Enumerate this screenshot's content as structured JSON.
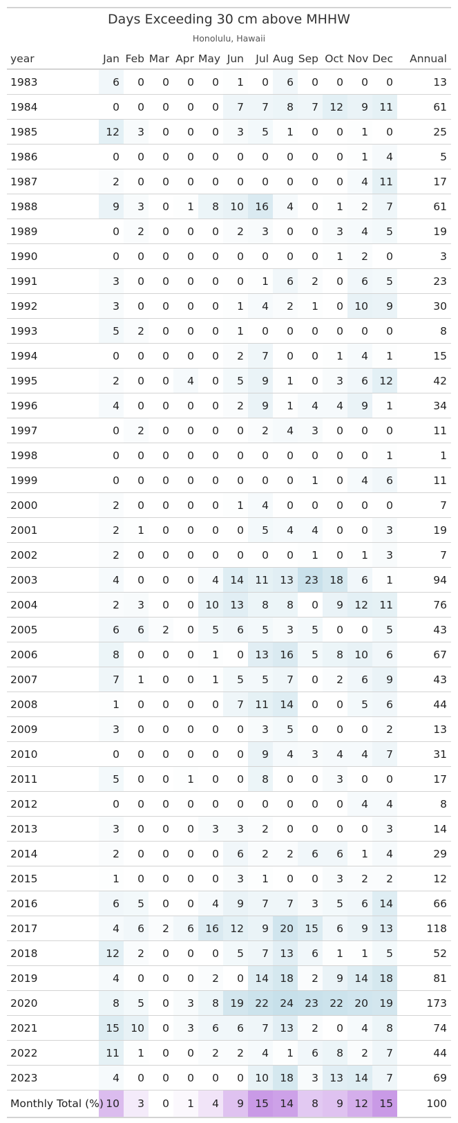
{
  "header": {
    "title": "Days Exceeding 30 cm above MHHW",
    "subtitle": "Honolulu, Hawaii"
  },
  "colors": {
    "low_fill": "#ffffff",
    "high_fill": "#c7e0ea",
    "total_low_fill": "#ffffff",
    "total_high_fill": "#c99ae6"
  },
  "chart_data": {
    "type": "table",
    "columns": [
      "year",
      "Jan",
      "Feb",
      "Mar",
      "Apr",
      "May",
      "Jun",
      "Jul",
      "Aug",
      "Sep",
      "Oct",
      "Nov",
      "Dec",
      "Annual"
    ],
    "rows": [
      {
        "year": "1983",
        "values": [
          6,
          0,
          0,
          0,
          0,
          1,
          0,
          6,
          0,
          0,
          0,
          0
        ],
        "annual": 13
      },
      {
        "year": "1984",
        "values": [
          0,
          0,
          0,
          0,
          0,
          7,
          7,
          8,
          7,
          12,
          9,
          11
        ],
        "annual": 61
      },
      {
        "year": "1985",
        "values": [
          12,
          3,
          0,
          0,
          0,
          3,
          5,
          1,
          0,
          0,
          1,
          0
        ],
        "annual": 25
      },
      {
        "year": "1986",
        "values": [
          0,
          0,
          0,
          0,
          0,
          0,
          0,
          0,
          0,
          0,
          1,
          4
        ],
        "annual": 5
      },
      {
        "year": "1987",
        "values": [
          2,
          0,
          0,
          0,
          0,
          0,
          0,
          0,
          0,
          0,
          4,
          11
        ],
        "annual": 17
      },
      {
        "year": "1988",
        "values": [
          9,
          3,
          0,
          1,
          8,
          10,
          16,
          4,
          0,
          1,
          2,
          7
        ],
        "annual": 61
      },
      {
        "year": "1989",
        "values": [
          0,
          2,
          0,
          0,
          0,
          2,
          3,
          0,
          0,
          3,
          4,
          5
        ],
        "annual": 19
      },
      {
        "year": "1990",
        "values": [
          0,
          0,
          0,
          0,
          0,
          0,
          0,
          0,
          0,
          1,
          2,
          0
        ],
        "annual": 3
      },
      {
        "year": "1991",
        "values": [
          3,
          0,
          0,
          0,
          0,
          0,
          1,
          6,
          2,
          0,
          6,
          5
        ],
        "annual": 23
      },
      {
        "year": "1992",
        "values": [
          3,
          0,
          0,
          0,
          0,
          1,
          4,
          2,
          1,
          0,
          10,
          9
        ],
        "annual": 30
      },
      {
        "year": "1993",
        "values": [
          5,
          2,
          0,
          0,
          0,
          1,
          0,
          0,
          0,
          0,
          0,
          0
        ],
        "annual": 8
      },
      {
        "year": "1994",
        "values": [
          0,
          0,
          0,
          0,
          0,
          2,
          7,
          0,
          0,
          1,
          4,
          1
        ],
        "annual": 15
      },
      {
        "year": "1995",
        "values": [
          2,
          0,
          0,
          4,
          0,
          5,
          9,
          1,
          0,
          3,
          6,
          12
        ],
        "annual": 42
      },
      {
        "year": "1996",
        "values": [
          4,
          0,
          0,
          0,
          0,
          2,
          9,
          1,
          4,
          4,
          9,
          1
        ],
        "annual": 34
      },
      {
        "year": "1997",
        "values": [
          0,
          2,
          0,
          0,
          0,
          0,
          2,
          4,
          3,
          0,
          0,
          0
        ],
        "annual": 11
      },
      {
        "year": "1998",
        "values": [
          0,
          0,
          0,
          0,
          0,
          0,
          0,
          0,
          0,
          0,
          0,
          1
        ],
        "annual": 1
      },
      {
        "year": "1999",
        "values": [
          0,
          0,
          0,
          0,
          0,
          0,
          0,
          0,
          1,
          0,
          4,
          6
        ],
        "annual": 11
      },
      {
        "year": "2000",
        "values": [
          2,
          0,
          0,
          0,
          0,
          1,
          4,
          0,
          0,
          0,
          0,
          0
        ],
        "annual": 7
      },
      {
        "year": "2001",
        "values": [
          2,
          1,
          0,
          0,
          0,
          0,
          5,
          4,
          4,
          0,
          0,
          3
        ],
        "annual": 19
      },
      {
        "year": "2002",
        "values": [
          2,
          0,
          0,
          0,
          0,
          0,
          0,
          0,
          1,
          0,
          1,
          3
        ],
        "annual": 7
      },
      {
        "year": "2003",
        "values": [
          4,
          0,
          0,
          0,
          4,
          14,
          11,
          13,
          23,
          18,
          6,
          1
        ],
        "annual": 94
      },
      {
        "year": "2004",
        "values": [
          2,
          3,
          0,
          0,
          10,
          13,
          8,
          8,
          0,
          9,
          12,
          11
        ],
        "annual": 76
      },
      {
        "year": "2005",
        "values": [
          6,
          6,
          2,
          0,
          5,
          6,
          5,
          3,
          5,
          0,
          0,
          5
        ],
        "annual": 43
      },
      {
        "year": "2006",
        "values": [
          8,
          0,
          0,
          0,
          1,
          0,
          13,
          16,
          5,
          8,
          10,
          6
        ],
        "annual": 67
      },
      {
        "year": "2007",
        "values": [
          7,
          1,
          0,
          0,
          1,
          5,
          5,
          7,
          0,
          2,
          6,
          9
        ],
        "annual": 43
      },
      {
        "year": "2008",
        "values": [
          1,
          0,
          0,
          0,
          0,
          7,
          11,
          14,
          0,
          0,
          5,
          6
        ],
        "annual": 44
      },
      {
        "year": "2009",
        "values": [
          3,
          0,
          0,
          0,
          0,
          0,
          3,
          5,
          0,
          0,
          0,
          2
        ],
        "annual": 13
      },
      {
        "year": "2010",
        "values": [
          0,
          0,
          0,
          0,
          0,
          0,
          9,
          4,
          3,
          4,
          4,
          7
        ],
        "annual": 31
      },
      {
        "year": "2011",
        "values": [
          5,
          0,
          0,
          1,
          0,
          0,
          8,
          0,
          0,
          3,
          0,
          0
        ],
        "annual": 17
      },
      {
        "year": "2012",
        "values": [
          0,
          0,
          0,
          0,
          0,
          0,
          0,
          0,
          0,
          0,
          4,
          4
        ],
        "annual": 8
      },
      {
        "year": "2013",
        "values": [
          3,
          0,
          0,
          0,
          3,
          3,
          2,
          0,
          0,
          0,
          0,
          3
        ],
        "annual": 14
      },
      {
        "year": "2014",
        "values": [
          2,
          0,
          0,
          0,
          0,
          6,
          2,
          2,
          6,
          6,
          1,
          4
        ],
        "annual": 29
      },
      {
        "year": "2015",
        "values": [
          1,
          0,
          0,
          0,
          0,
          3,
          1,
          0,
          0,
          3,
          2,
          2
        ],
        "annual": 12
      },
      {
        "year": "2016",
        "values": [
          6,
          5,
          0,
          0,
          4,
          9,
          7,
          7,
          3,
          5,
          6,
          14
        ],
        "annual": 66
      },
      {
        "year": "2017",
        "values": [
          4,
          6,
          2,
          6,
          16,
          12,
          9,
          20,
          15,
          6,
          9,
          13
        ],
        "annual": 118
      },
      {
        "year": "2018",
        "values": [
          12,
          2,
          0,
          0,
          0,
          5,
          7,
          13,
          6,
          1,
          1,
          5
        ],
        "annual": 52
      },
      {
        "year": "2019",
        "values": [
          4,
          0,
          0,
          0,
          2,
          0,
          14,
          18,
          2,
          9,
          14,
          18
        ],
        "annual": 81
      },
      {
        "year": "2020",
        "values": [
          8,
          5,
          0,
          3,
          8,
          19,
          22,
          24,
          23,
          22,
          20,
          19
        ],
        "annual": 173
      },
      {
        "year": "2021",
        "values": [
          15,
          10,
          0,
          3,
          6,
          6,
          7,
          13,
          2,
          0,
          4,
          8
        ],
        "annual": 74
      },
      {
        "year": "2022",
        "values": [
          11,
          1,
          0,
          0,
          2,
          2,
          4,
          1,
          6,
          8,
          2,
          7
        ],
        "annual": 44
      },
      {
        "year": "2023",
        "values": [
          4,
          0,
          0,
          0,
          0,
          0,
          10,
          18,
          3,
          13,
          14,
          7
        ],
        "annual": 69
      }
    ],
    "total_row": {
      "label": "Monthly Total (%)",
      "values": [
        10,
        3,
        0,
        1,
        4,
        9,
        15,
        14,
        8,
        9,
        12,
        15
      ],
      "annual": 100
    }
  }
}
